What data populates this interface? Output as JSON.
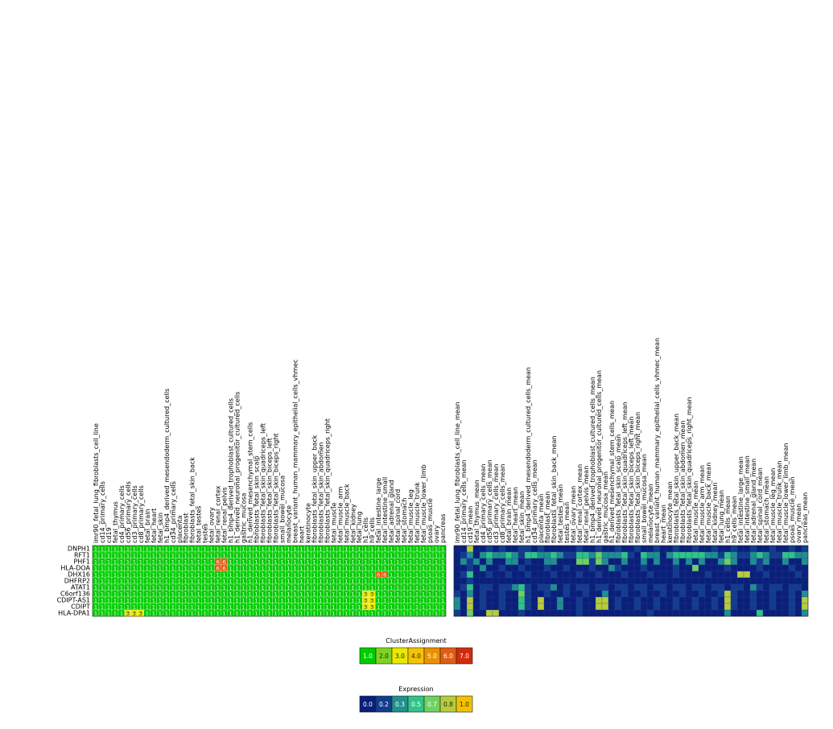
{
  "chart_data": [
    {
      "type": "heatmap",
      "title": "",
      "rows": [
        "DNPH1",
        "RFT1",
        "PHF1",
        "HLA-DOA",
        "DHX16",
        "DHFRP2",
        "ATAT1",
        "C6orf136",
        "CDIPT-AS1",
        "CDIPT",
        "HLA-DPA1"
      ],
      "columns": [
        "imr90_fetal_lung_fibroblasts_cell_line",
        "cd14_primary_cells",
        "cd19",
        "fetal_thymus",
        "cd4_primary_cells",
        "cd56_primary_cells",
        "cd3_primary_cells",
        "cd8_primary_cells",
        "fetal_brain",
        "fetal_heart",
        "fetal_skin",
        "h1_bmp4_derived_mesendoderm_cultured_cells",
        "cd34_primary_cells",
        "placenta",
        "fibroblast",
        "fibroblasts_fetal_skin_back",
        "fetal_testes",
        "testes",
        "fetal_ovary",
        "fetal_renal_cortex",
        "fetal_renal_pelvis",
        "h1_bmp4_derived_trophoblast_cultured_cells",
        "h1_derived_neuronal_progenitor_cultured_cells",
        "gastric_mucosa",
        "h1_derived_mesenchymal_stem_cells",
        "fibroblasts_fetal_skin_scalp",
        "fibroblasts_fetal_skin_quadriceps_left",
        "fibroblasts_fetal_skin_biceps_left",
        "fibroblasts_fetal_skin_biceps_right",
        "small_bowel_mucosa",
        "melanocyte",
        "breast_variant_human_mammary_epithelial_cells_vhmec",
        "heart",
        "keratinocyte",
        "fibroblasts_fetal_skin_upper_back",
        "fibroblasts_fetal_skin_abdomen",
        "fibroblasts_fetal_skin_quadriceps_right",
        "fetal_muscle",
        "fetal_muscle_arm",
        "fetal_muscle_back",
        "fetal_kidney",
        "fetal_lung",
        "h1_cells",
        "h9_cells",
        "fetal_intestine_large",
        "fetal_intestine_small",
        "fetal_adrenal_gland",
        "fetal_spinal_cord",
        "fetal_stomach",
        "fetal_muscle_leg",
        "fetal_muscle_trunk",
        "fetal_muscle_lower_limb",
        "psoas_muscle",
        "ovary",
        "pancreas"
      ],
      "special_cells": [
        {
          "row": 2,
          "col": 19,
          "value": 6
        },
        {
          "row": 2,
          "col": 20,
          "value": 6
        },
        {
          "row": 3,
          "col": 19,
          "value": 6
        },
        {
          "row": 3,
          "col": 20,
          "value": 6
        },
        {
          "row": 4,
          "col": 44,
          "value": 6
        },
        {
          "row": 4,
          "col": 45,
          "value": 6
        },
        {
          "row": 7,
          "col": 42,
          "value": 3
        },
        {
          "row": 7,
          "col": 43,
          "value": 3
        },
        {
          "row": 8,
          "col": 42,
          "value": 3
        },
        {
          "row": 8,
          "col": 43,
          "value": 3
        },
        {
          "row": 9,
          "col": 42,
          "value": 3
        },
        {
          "row": 9,
          "col": 43,
          "value": 3
        },
        {
          "row": 10,
          "col": 5,
          "value": 3
        },
        {
          "row": 10,
          "col": 6,
          "value": 3
        },
        {
          "row": 10,
          "col": 7,
          "value": 3
        }
      ],
      "default_value": 1,
      "value_colors": {
        "1": "#00cc00",
        "2": "#7ed321",
        "3": "#e8e800",
        "4": "#f5c400",
        "5": "#ea9100",
        "6": "#e05c10",
        "7": "#d42a0a"
      },
      "cell_text_color": "#ffffff",
      "cell_text_color_light": "#222222"
    },
    {
      "type": "heatmap",
      "title": "",
      "rows": [
        "DNPH1",
        "RFT1",
        "PHF1",
        "HLA-DOA",
        "DHX16",
        "DHFRP2",
        "ATAT1",
        "C6orf136",
        "CDIPT-AS1",
        "CDIPT",
        "HLA-DPA1"
      ],
      "columns": [
        "imr90_fetal_lung_fibroblasts_cell_line_mean",
        "cd14_primary_cells_mean",
        "cd19_mean",
        "fetal_thymus_mean",
        "cd4_primary_cells_mean",
        "cd56_primary_cells_mean",
        "cd3_primary_cells_mean",
        "cd8_primary_cells_mean",
        "fetal_brain_mean",
        "fetal_heart_mean",
        "fetal_skin_mean",
        "h1_bmp4_derived_mesendoderm_cultured_cells_mean",
        "cd34_primary_cells_mean",
        "placenta_mean",
        "fibroblast_mean",
        "fibroblasts_fetal_skin_back_mean",
        "fetal_testes_mean",
        "testes_mean",
        "fetal_ovary_mean",
        "fetal_renal_cortex_mean",
        "fetal_renal_pelvis_mean",
        "h1_bmp4_derived_trophoblast_cultured_cells_mean",
        "h1_derived_neuronal_progenitor_cultured_cells_mean",
        "gastric_mucosa_mean",
        "h1_derived_mesenchymal_stem_cells_mean",
        "fibroblasts_fetal_skin_scalp_mean",
        "fibroblasts_fetal_skin_quadriceps_left_mean",
        "fibroblasts_fetal_skin_biceps_left_mean",
        "fibroblasts_fetal_skin_biceps_right_mean",
        "small_bowel_mucosa_mean",
        "melanocyte_mean",
        "breast_variant_human_mammary_epithelial_cells_vhmec_mean",
        "heart_mean",
        "keratinocyte_mean",
        "fibroblasts_fetal_skin_upper_back_mean",
        "fibroblasts_fetal_skin_abdomen_mean",
        "fibroblasts_fetal_skin_quadriceps_right_mean",
        "fetal_muscle_mean",
        "fetal_muscle_arm_mean",
        "fetal_muscle_back_mean",
        "fetal_kidney_mean",
        "fetal_lung_mean",
        "h1_cells_mean",
        "h9_cells_mean",
        "fetal_intestine_large_mean",
        "fetal_intestine_small_mean",
        "fetal_adrenal_gland_mean",
        "fetal_spinal_cord_mean",
        "fetal_stomach_mean",
        "fetal_muscle_leg_mean",
        "fetal_muscle_trunk_mean",
        "fetal_muscle_lower_limb_mean",
        "psoas_muscle_mean",
        "ovary_mean",
        "pancreas_mean"
      ],
      "values": [
        [
          0.0,
          0.0,
          0.8,
          0.0,
          0.0,
          0.2,
          0.0,
          0.2,
          0.0,
          0.0,
          0.2,
          0.2,
          0.0,
          0.2,
          0.0,
          0.0,
          0.0,
          0.0,
          0.0,
          0.2,
          0.0,
          0.0,
          0.2,
          0.0,
          0.0,
          0.2,
          0.0,
          0.0,
          0.2,
          0.0,
          0.0,
          0.2,
          0.0,
          0.0,
          0.2,
          0.0,
          0.0,
          0.2,
          0.0,
          0.0,
          0.2,
          0.0,
          0.0,
          0.2,
          0.0,
          0.0,
          0.2,
          0.0,
          0.0,
          0.2,
          0.0,
          0.0,
          0.2,
          0.0,
          0.2
        ],
        [
          0.0,
          0.2,
          0.3,
          0.0,
          0.3,
          0.5,
          0.3,
          0.3,
          0.5,
          0.3,
          0.2,
          0.5,
          0.5,
          0.3,
          0.3,
          0.5,
          0.3,
          0.2,
          0.2,
          0.5,
          0.5,
          0.3,
          0.7,
          0.3,
          0.3,
          0.3,
          0.5,
          0.2,
          0.0,
          0.5,
          0.3,
          0.3,
          0.0,
          0.3,
          0.5,
          0.5,
          0.5,
          0.5,
          0.5,
          0.3,
          0.3,
          0.2,
          0.5,
          0.3,
          0.2,
          0.2,
          0.3,
          0.5,
          0.3,
          0.2,
          0.2,
          0.5,
          0.5,
          0.3,
          0.3
        ],
        [
          0.0,
          0.3,
          0.2,
          0.3,
          0.0,
          0.3,
          0.0,
          0.0,
          0.3,
          0.3,
          0.0,
          0.2,
          0.0,
          0.0,
          0.3,
          0.3,
          0.0,
          0.0,
          0.0,
          0.7,
          0.7,
          0.2,
          0.7,
          0.3,
          0.0,
          0.0,
          0.3,
          0.0,
          0.0,
          0.3,
          0.0,
          0.3,
          0.0,
          0.0,
          0.3,
          0.0,
          0.3,
          0.0,
          0.3,
          0.0,
          0.0,
          0.3,
          0.7,
          0.3,
          0.0,
          0.0,
          0.3,
          0.2,
          0.3,
          0.0,
          0.0,
          0.3,
          0.0,
          0.0,
          0.3
        ],
        [
          0.0,
          0.0,
          0.2,
          0.0,
          0.3,
          0.0,
          0.0,
          0.2,
          0.0,
          0.0,
          0.2,
          0.0,
          0.0,
          0.0,
          0.2,
          0.0,
          0.0,
          0.2,
          0.0,
          0.0,
          0.0,
          0.2,
          0.0,
          0.0,
          0.3,
          0.2,
          0.0,
          0.0,
          0.0,
          0.2,
          0.0,
          0.0,
          0.0,
          0.0,
          0.2,
          0.0,
          0.0,
          0.7,
          0.0,
          0.0,
          0.0,
          0.0,
          0.2,
          0.0,
          0.0,
          0.0,
          0.0,
          0.2,
          0.0,
          0.0,
          0.0,
          0.0,
          0.2,
          0.0,
          0.0
        ],
        [
          0.0,
          0.2,
          0.5,
          0.0,
          0.0,
          0.2,
          0.0,
          0.0,
          0.2,
          0.0,
          0.0,
          0.2,
          0.0,
          0.0,
          0.0,
          0.2,
          0.0,
          0.0,
          0.0,
          0.2,
          0.0,
          0.0,
          0.2,
          0.0,
          0.0,
          0.0,
          0.2,
          0.0,
          0.0,
          0.0,
          0.2,
          0.0,
          0.0,
          0.0,
          0.2,
          0.0,
          0.0,
          0.0,
          0.0,
          0.2,
          0.0,
          0.0,
          0.0,
          0.0,
          0.8,
          0.8,
          0.0,
          0.0,
          0.2,
          0.0,
          0.0,
          0.0,
          0.0,
          0.2,
          0.0
        ],
        [
          0.0,
          0.0,
          0.2,
          0.0,
          0.0,
          0.0,
          0.0,
          0.0,
          0.0,
          0.0,
          0.0,
          0.0,
          0.0,
          0.0,
          0.0,
          0.0,
          0.0,
          0.0,
          0.0,
          0.0,
          0.0,
          0.0,
          0.0,
          0.0,
          0.0,
          0.0,
          0.0,
          0.0,
          0.0,
          0.0,
          0.0,
          0.0,
          0.0,
          0.0,
          0.0,
          0.0,
          0.0,
          0.0,
          0.0,
          0.0,
          0.0,
          0.0,
          0.0,
          0.0,
          0.0,
          0.0,
          0.0,
          0.0,
          0.0,
          0.0,
          0.0,
          0.0,
          0.0,
          0.0,
          0.0
        ],
        [
          0.0,
          0.2,
          0.5,
          0.0,
          0.2,
          0.2,
          0.0,
          0.2,
          0.2,
          0.3,
          0.5,
          0.2,
          0.0,
          0.2,
          0.2,
          0.3,
          0.0,
          0.2,
          0.0,
          0.2,
          0.2,
          0.0,
          0.2,
          0.2,
          0.0,
          0.2,
          0.2,
          0.0,
          0.2,
          0.2,
          0.0,
          0.2,
          0.2,
          0.0,
          0.2,
          0.2,
          0.0,
          0.2,
          0.2,
          0.0,
          0.2,
          0.2,
          0.0,
          0.2,
          0.2,
          0.0,
          0.3,
          0.2,
          0.0,
          0.2,
          0.2,
          0.0,
          0.2,
          0.2,
          0.0
        ],
        [
          0.2,
          0.0,
          0.3,
          0.0,
          0.2,
          0.0,
          0.0,
          0.2,
          0.0,
          0.0,
          0.7,
          0.2,
          0.0,
          0.0,
          0.2,
          0.0,
          0.0,
          0.2,
          0.0,
          0.0,
          0.2,
          0.0,
          0.0,
          0.3,
          0.0,
          0.0,
          0.2,
          0.0,
          0.0,
          0.2,
          0.0,
          0.0,
          0.2,
          0.0,
          0.0,
          0.2,
          0.0,
          0.0,
          0.2,
          0.0,
          0.0,
          0.2,
          0.8,
          0.2,
          0.0,
          0.0,
          0.2,
          0.0,
          0.0,
          0.2,
          0.0,
          0.0,
          0.2,
          0.0,
          0.3
        ],
        [
          0.3,
          0.0,
          0.8,
          0.0,
          0.2,
          0.0,
          0.0,
          0.2,
          0.0,
          0.0,
          0.5,
          0.2,
          0.0,
          0.8,
          0.0,
          0.0,
          0.3,
          0.0,
          0.0,
          0.2,
          0.0,
          0.0,
          0.8,
          0.8,
          0.0,
          0.2,
          0.0,
          0.0,
          0.2,
          0.0,
          0.0,
          0.2,
          0.0,
          0.0,
          0.2,
          0.0,
          0.0,
          0.2,
          0.0,
          0.0,
          0.2,
          0.0,
          0.8,
          0.2,
          0.0,
          0.0,
          0.2,
          0.0,
          0.0,
          0.2,
          0.0,
          0.0,
          0.2,
          0.0,
          0.8
        ],
        [
          0.3,
          0.0,
          0.8,
          0.0,
          0.2,
          0.0,
          0.0,
          0.2,
          0.0,
          0.0,
          0.5,
          0.2,
          0.0,
          0.8,
          0.0,
          0.0,
          0.3,
          0.0,
          0.0,
          0.2,
          0.0,
          0.0,
          0.8,
          0.8,
          0.0,
          0.2,
          0.0,
          0.0,
          0.2,
          0.0,
          0.0,
          0.2,
          0.0,
          0.0,
          0.2,
          0.0,
          0.0,
          0.2,
          0.0,
          0.0,
          0.2,
          0.0,
          0.8,
          0.2,
          0.0,
          0.0,
          0.2,
          0.0,
          0.0,
          0.2,
          0.0,
          0.0,
          0.2,
          0.0,
          0.8
        ],
        [
          0.2,
          0.0,
          0.7,
          0.0,
          0.0,
          0.8,
          0.8,
          0.0,
          0.0,
          0.0,
          0.2,
          0.0,
          0.0,
          0.0,
          0.0,
          0.0,
          0.0,
          0.0,
          0.0,
          0.2,
          0.0,
          0.0,
          0.0,
          0.0,
          0.0,
          0.0,
          0.0,
          0.0,
          0.0,
          0.0,
          0.2,
          0.0,
          0.0,
          0.0,
          0.0,
          0.0,
          0.0,
          0.0,
          0.0,
          0.0,
          0.0,
          0.0,
          0.3,
          0.0,
          0.0,
          0.0,
          0.0,
          0.5,
          0.0,
          0.0,
          0.0,
          0.0,
          0.2,
          0.0,
          0.3
        ]
      ],
      "color_scale": [
        "#0a1f7a",
        "#133d8c",
        "#1f8f8f",
        "#2fc486",
        "#6fd160",
        "#b6cc3a",
        "#f2c200"
      ]
    }
  ],
  "legends": [
    {
      "title": "ClusterAssignment",
      "entries": [
        {
          "label": "1.0",
          "color": "#00cc00"
        },
        {
          "label": "2.0",
          "color": "#7ed321"
        },
        {
          "label": "3.0",
          "color": "#e8e800"
        },
        {
          "label": "4.0",
          "color": "#f5c400"
        },
        {
          "label": "5.0",
          "color": "#ea9100"
        },
        {
          "label": "6.0",
          "color": "#e05c10"
        },
        {
          "label": "7.0",
          "color": "#d42a0a"
        }
      ]
    },
    {
      "title": "Expression",
      "entries": [
        {
          "label": "0.0",
          "color": "#0a1f7a"
        },
        {
          "label": "0.2",
          "color": "#133d8c"
        },
        {
          "label": "0.3",
          "color": "#1f8f8f"
        },
        {
          "label": "0.5",
          "color": "#2fc486"
        },
        {
          "label": "0.7",
          "color": "#6fd160"
        },
        {
          "label": "0.8",
          "color": "#b6cc3a"
        },
        {
          "label": "1.0",
          "color": "#f2c200"
        }
      ]
    }
  ]
}
